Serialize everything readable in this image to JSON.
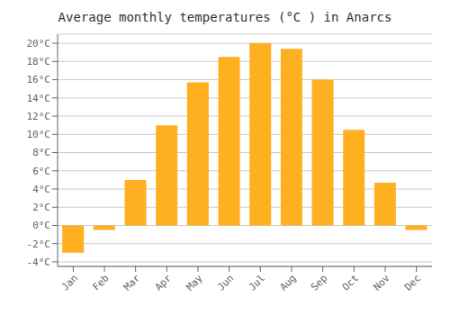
{
  "chart_data": {
    "type": "bar",
    "title": "Average monthly temperatures (°C ) in Anarcs",
    "categories": [
      "Jan",
      "Feb",
      "Mar",
      "Apr",
      "May",
      "Jun",
      "Jul",
      "Aug",
      "Sep",
      "Oct",
      "Nov",
      "Dec"
    ],
    "values": [
      -3.0,
      -0.5,
      5.0,
      11.0,
      15.7,
      18.5,
      20.0,
      19.4,
      16.0,
      10.5,
      4.7,
      -0.5
    ],
    "color": "#FFB020",
    "ylim": [
      -4.5,
      21
    ],
    "yticks": [
      {
        "value": -4,
        "label": "-4°C"
      },
      {
        "value": -2,
        "label": "-2°C"
      },
      {
        "value": 0,
        "label": "0°C"
      },
      {
        "value": 2,
        "label": "2°C"
      },
      {
        "value": 4,
        "label": "4°C"
      },
      {
        "value": 6,
        "label": "6°C"
      },
      {
        "value": 8,
        "label": "8°C"
      },
      {
        "value": 10,
        "label": "10°C"
      },
      {
        "value": 12,
        "label": "12°C"
      },
      {
        "value": 14,
        "label": "14°C"
      },
      {
        "value": 16,
        "label": "16°C"
      },
      {
        "value": 18,
        "label": "18°C"
      },
      {
        "value": 20,
        "label": "20°C"
      }
    ],
    "grid": true
  }
}
